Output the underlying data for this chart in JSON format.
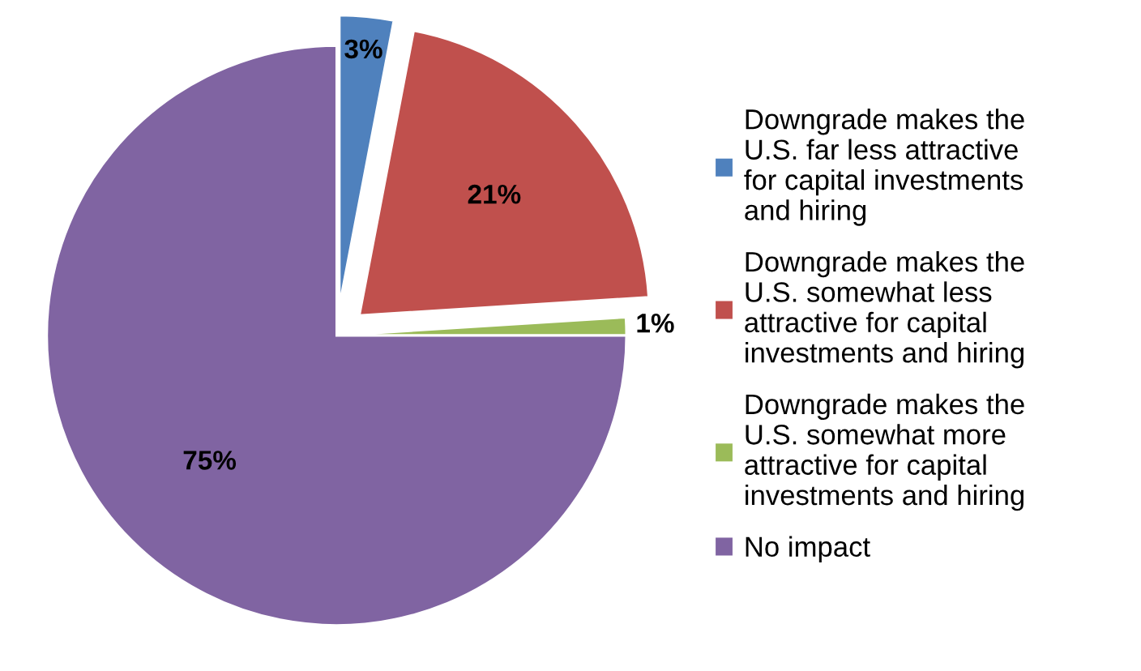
{
  "chart_data": {
    "type": "pie",
    "categories": [
      "Downgrade makes the\nU.S. far less attractive\nfor capital investments\nand hiring",
      "Downgrade makes the\nU.S. somewhat less\nattractive for capital\ninvestments and hiring",
      "Downgrade makes the\nU.S. somewhat more\nattractive for capital\ninvestments and hiring",
      "No impact"
    ],
    "values": [
      3,
      21,
      1,
      75
    ],
    "colors": [
      "#4f81bd",
      "#c0504d",
      "#9bbb59",
      "#8064a2"
    ],
    "value_labels": [
      "3%",
      "21%",
      "1%",
      "75%"
    ],
    "legend": "right"
  }
}
